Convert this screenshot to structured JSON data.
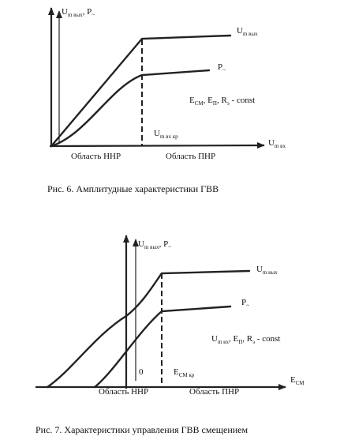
{
  "figures": [
    {
      "y_axis_label": [
        "U",
        {
          "sub": "m вых"
        },
        ", P",
        {
          "sub": "~"
        }
      ],
      "curve_labels": [
        [
          "U",
          {
            "sub": "m вых"
          }
        ],
        [
          "P",
          {
            "sub": "~"
          }
        ]
      ],
      "condition": [
        "E",
        {
          "sub": "СМ"
        },
        ", E",
        {
          "sub": "П"
        },
        ", R",
        {
          "sub": "э"
        },
        " - const"
      ],
      "threshold_label": [
        "U",
        {
          "sub": "m вх кр"
        }
      ],
      "x_axis_label": [
        "U",
        {
          "sub": "m вх"
        }
      ],
      "regions": [
        "Область ННР",
        "Область ПНР"
      ],
      "caption": "Рис. 6. Амплитудные характеристики ГВВ"
    },
    {
      "y_axis_label": [
        "U",
        {
          "sub": "m вых"
        },
        ", P",
        {
          "sub": "~"
        }
      ],
      "curve_labels": [
        [
          "U",
          {
            "sub": "m вых"
          }
        ],
        [
          "P",
          {
            "sub": "~"
          }
        ]
      ],
      "condition": [
        "U",
        {
          "sub": "m вх"
        },
        ", E",
        {
          "sub": "П"
        },
        ", R",
        {
          "sub": "э"
        },
        " - const"
      ],
      "origin_label": "0",
      "threshold_label": [
        "E",
        {
          "sub": "СМ кр"
        }
      ],
      "x_axis_label": [
        "E",
        {
          "sub": "СМ"
        }
      ],
      "regions": [
        "Область ННР",
        "Область ПНР"
      ],
      "caption": "Рис. 7. Характеристики управления ГВВ смещением"
    }
  ]
}
